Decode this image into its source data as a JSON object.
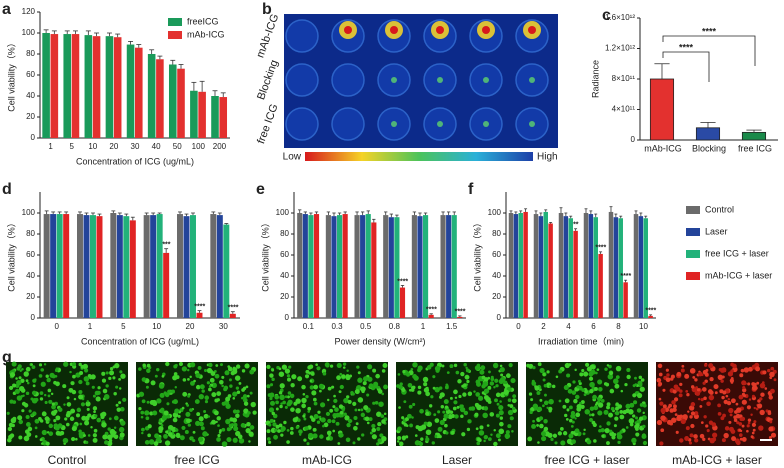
{
  "chart_data": [
    {
      "type": "bar",
      "panel": "a",
      "x_label": "Concentration of ICG (ug/mL)",
      "y_label": "Cell viability（%）",
      "categories": [
        "1",
        "5",
        "10",
        "20",
        "30",
        "40",
        "50",
        "100",
        "200"
      ],
      "series": [
        {
          "name": "freeICG",
          "color": "#1a9a5a",
          "values": [
            100,
            99,
            98,
            97,
            89,
            80,
            70,
            45,
            40
          ],
          "errors": [
            3,
            3,
            4,
            3,
            3,
            4,
            4,
            8,
            5
          ]
        },
        {
          "name": "mAb-ICG",
          "color": "#e3312f",
          "values": [
            99,
            99,
            97,
            96,
            86,
            75,
            66,
            44,
            39
          ],
          "errors": [
            3,
            3,
            3,
            3,
            3,
            3,
            4,
            10,
            4
          ]
        }
      ],
      "ylim": [
        0,
        120
      ],
      "yticks": [
        0,
        20,
        40,
        60,
        80,
        100,
        120
      ],
      "legend": "top-right"
    },
    {
      "type": "bar",
      "panel": "c",
      "y_label": "Radiance",
      "categories": [
        "mAb-ICG",
        "Blocking",
        "free ICG"
      ],
      "values": [
        800000000000,
        160000000000,
        100000000000
      ],
      "errors": [
        200000000000,
        70000000000,
        30000000000
      ],
      "colors": [
        "#e3312f",
        "#2a4aa5",
        "#1a8a4a"
      ],
      "ylim": [
        0,
        1600000000000
      ],
      "yticks": [
        0,
        {
          "value": 400000000000,
          "label": "4×10¹¹"
        },
        {
          "value": 800000000000,
          "label": "8×10¹¹"
        },
        {
          "value": 1200000000000,
          "label": "1.2×10¹²"
        },
        {
          "value": 1600000000000,
          "label": "1.6×10¹²"
        }
      ],
      "annotations": [
        {
          "text": "****",
          "pair": [
            "mAb-ICG",
            "Blocking"
          ]
        },
        {
          "text": "****",
          "pair": [
            "mAb-ICG",
            "free ICG"
          ]
        }
      ]
    },
    {
      "type": "bar",
      "panel": "d",
      "x_label": "Concentration of ICG (ug/mL)",
      "y_label": "Cell viability（%）",
      "categories": [
        "0",
        "1",
        "5",
        "10",
        "20",
        "30"
      ],
      "series": [
        {
          "color": "#6b6b6b",
          "values": [
            99,
            99,
            100,
            98,
            99,
            99
          ],
          "errors": [
            3,
            2,
            2,
            2,
            2,
            2
          ]
        },
        {
          "color": "#23449a",
          "values": [
            99,
            98,
            98,
            98,
            97,
            98
          ],
          "errors": [
            2,
            2,
            2,
            2,
            2,
            2
          ]
        },
        {
          "color": "#22b27a",
          "values": [
            99,
            98,
            97,
            99,
            98,
            89
          ],
          "errors": [
            2,
            2,
            2,
            1,
            2,
            1
          ]
        },
        {
          "color": "#e02424",
          "values": [
            99,
            97,
            93,
            62,
            5,
            4
          ],
          "errors": [
            2,
            2,
            3,
            4,
            2,
            2
          ]
        }
      ],
      "ylim": [
        0,
        120
      ],
      "yticks": [
        0,
        20,
        40,
        60,
        80,
        100
      ],
      "annotations": [
        {
          "text": "***",
          "category": "10"
        },
        {
          "text": "****",
          "category": "20"
        },
        {
          "text": "****",
          "category": "30"
        }
      ]
    },
    {
      "type": "bar",
      "panel": "e",
      "x_label": "Power density (W/cm²)",
      "y_label": "Cell viability（%）",
      "categories": [
        "0.1",
        "0.3",
        "0.5",
        "0.8",
        "1",
        "1.5"
      ],
      "series": [
        {
          "color": "#6b6b6b",
          "values": [
            100,
            98,
            98,
            98,
            98,
            98
          ],
          "errors": [
            3,
            3,
            3,
            3,
            3,
            3
          ]
        },
        {
          "color": "#23449a",
          "values": [
            99,
            97,
            98,
            96,
            97,
            98
          ],
          "errors": [
            2,
            3,
            3,
            3,
            3,
            3
          ]
        },
        {
          "color": "#22b27a",
          "values": [
            98,
            98,
            99,
            96,
            98,
            98
          ],
          "errors": [
            2,
            2,
            3,
            2,
            2,
            3
          ]
        },
        {
          "color": "#e02424",
          "values": [
            99,
            99,
            91,
            29,
            3,
            1
          ],
          "errors": [
            2,
            2,
            3,
            2,
            1,
            1
          ]
        }
      ],
      "ylim": [
        0,
        120
      ],
      "yticks": [
        0,
        20,
        40,
        60,
        80,
        100
      ],
      "annotations": [
        {
          "text": "****",
          "category": "0.8"
        },
        {
          "text": "****",
          "category": "1"
        },
        {
          "text": "****",
          "category": "1.5"
        }
      ]
    },
    {
      "type": "bar",
      "panel": "f",
      "x_label": "Irradiation time（min)",
      "y_label": "Cell viability（%）",
      "categories": [
        "0",
        "2",
        "4",
        "6",
        "8",
        "10"
      ],
      "series": [
        {
          "name": "Control",
          "color": "#6b6b6b",
          "values": [
            100,
            99,
            100,
            100,
            101,
            99
          ],
          "errors": [
            2,
            3,
            5,
            4,
            5,
            3
          ]
        },
        {
          "name": "Laser",
          "color": "#23449a",
          "values": [
            99,
            97,
            97,
            99,
            96,
            97
          ],
          "errors": [
            2,
            3,
            3,
            3,
            3,
            3
          ]
        },
        {
          "name": "free ICG + laser",
          "color": "#22b27a",
          "values": [
            100,
            101,
            95,
            96,
            95,
            95
          ],
          "errors": [
            2,
            2,
            2,
            3,
            2,
            2
          ]
        },
        {
          "name": "mAb-ICG + laser",
          "color": "#e02424",
          "values": [
            101,
            90,
            83,
            61,
            34,
            2
          ],
          "errors": [
            3,
            1,
            2,
            2,
            2,
            1
          ]
        }
      ],
      "ylim": [
        0,
        120
      ],
      "yticks": [
        0,
        20,
        40,
        60,
        80,
        100
      ],
      "legend": "right",
      "annotations": [
        {
          "text": "**",
          "category": "4"
        },
        {
          "text": "****",
          "category": "6"
        },
        {
          "text": "****",
          "category": "8"
        },
        {
          "text": "****",
          "category": "10"
        }
      ]
    }
  ],
  "figure_b": {
    "panel": "b",
    "row_labels": [
      "mAb-ICG",
      "Blocking",
      "free ICG"
    ],
    "colorbar": {
      "low": "Low",
      "high": "High"
    }
  },
  "figure_g": {
    "panel": "g",
    "labels": [
      "Control",
      "free ICG",
      "mAb-ICG",
      "Laser",
      "free ICG + laser",
      "mAb-ICG + laser"
    ]
  }
}
